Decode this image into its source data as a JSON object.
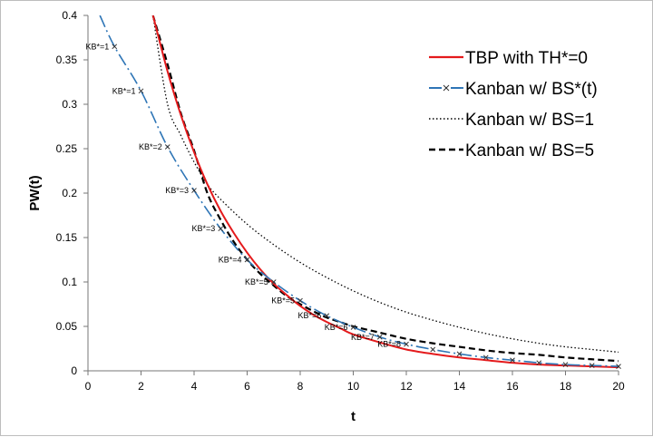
{
  "chart_data": {
    "type": "line",
    "title": "",
    "xlabel": "t",
    "ylabel": "PW(t)",
    "xlim": [
      0,
      20
    ],
    "ylim": [
      0,
      0.4
    ],
    "xticks": [
      "0",
      "2",
      "4",
      "6",
      "8",
      "10",
      "12",
      "14",
      "16",
      "18",
      "20"
    ],
    "yticks": [
      "0",
      "0.05",
      "0.1",
      "0.15",
      "0.2",
      "0.25",
      "0.3",
      "0.35",
      "0.4"
    ],
    "grid": false,
    "legend_position": "top-right",
    "series": [
      {
        "name": "TBP with TH*=0",
        "color": "#e41a1c",
        "style": "solid",
        "x": [
          2.45,
          3,
          3.5,
          4,
          4.5,
          5,
          5.5,
          6,
          6.5,
          7,
          7.5,
          8,
          8.5,
          9,
          9.5,
          10,
          11,
          12,
          13,
          14,
          15,
          16,
          17,
          18,
          19,
          20
        ],
        "y": [
          0.4,
          0.337,
          0.288,
          0.246,
          0.21,
          0.18,
          0.155,
          0.133,
          0.114,
          0.098,
          0.085,
          0.073,
          0.063,
          0.055,
          0.048,
          0.041,
          0.032,
          0.024,
          0.019,
          0.015,
          0.012,
          0.009,
          0.007,
          0.006,
          0.005,
          0.004
        ]
      },
      {
        "name": "Kanban w/ BS*(t)",
        "color": "#2e75b6",
        "style": "dash-dot",
        "marker": "x",
        "x": [
          0.45,
          1,
          2,
          3,
          4,
          5,
          6,
          7,
          8,
          9,
          10,
          11,
          12,
          13,
          14,
          15,
          16,
          17,
          18,
          19,
          20
        ],
        "y": [
          0.4,
          0.365,
          0.315,
          0.252,
          0.203,
          0.16,
          0.125,
          0.1,
          0.079,
          0.062,
          0.049,
          0.038,
          0.03,
          0.024,
          0.019,
          0.015,
          0.012,
          0.009,
          0.007,
          0.006,
          0.005
        ],
        "point_labels": [
          "",
          "KB*=1",
          "KB*=1",
          "KB*=2",
          "KB*=3",
          "KB*=3",
          "KB*=4",
          "KB*=5",
          "KB*=5",
          "KB*=6",
          "KB*=6",
          "KB*=7",
          "KB*=8",
          "",
          "",
          "",
          "",
          "",
          "",
          "",
          ""
        ]
      },
      {
        "name": "Kanban w/ BS=1",
        "color": "#000000",
        "style": "dotted",
        "x": [
          2.45,
          3,
          3.5,
          4,
          4.5,
          5,
          6,
          7,
          8,
          9,
          10,
          11,
          12,
          13,
          14,
          15,
          16,
          17,
          18,
          19,
          20
        ],
        "y": [
          0.4,
          0.3,
          0.265,
          0.235,
          0.21,
          0.193,
          0.165,
          0.142,
          0.122,
          0.105,
          0.09,
          0.077,
          0.066,
          0.057,
          0.049,
          0.042,
          0.036,
          0.031,
          0.027,
          0.024,
          0.021
        ]
      },
      {
        "name": "Kanban w/ BS=5",
        "color": "#000000",
        "style": "dashed",
        "x": [
          2.45,
          3,
          3.5,
          4,
          4.5,
          5,
          5.5,
          6,
          6.5,
          7,
          7.5,
          8,
          8.5,
          9,
          9.5,
          10,
          11,
          12,
          13,
          14,
          15,
          16,
          17,
          18,
          19,
          20
        ],
        "y": [
          0.4,
          0.345,
          0.29,
          0.248,
          0.2,
          0.17,
          0.145,
          0.125,
          0.109,
          0.096,
          0.084,
          0.075,
          0.067,
          0.06,
          0.055,
          0.05,
          0.043,
          0.036,
          0.031,
          0.027,
          0.023,
          0.02,
          0.018,
          0.015,
          0.013,
          0.011
        ]
      }
    ]
  }
}
